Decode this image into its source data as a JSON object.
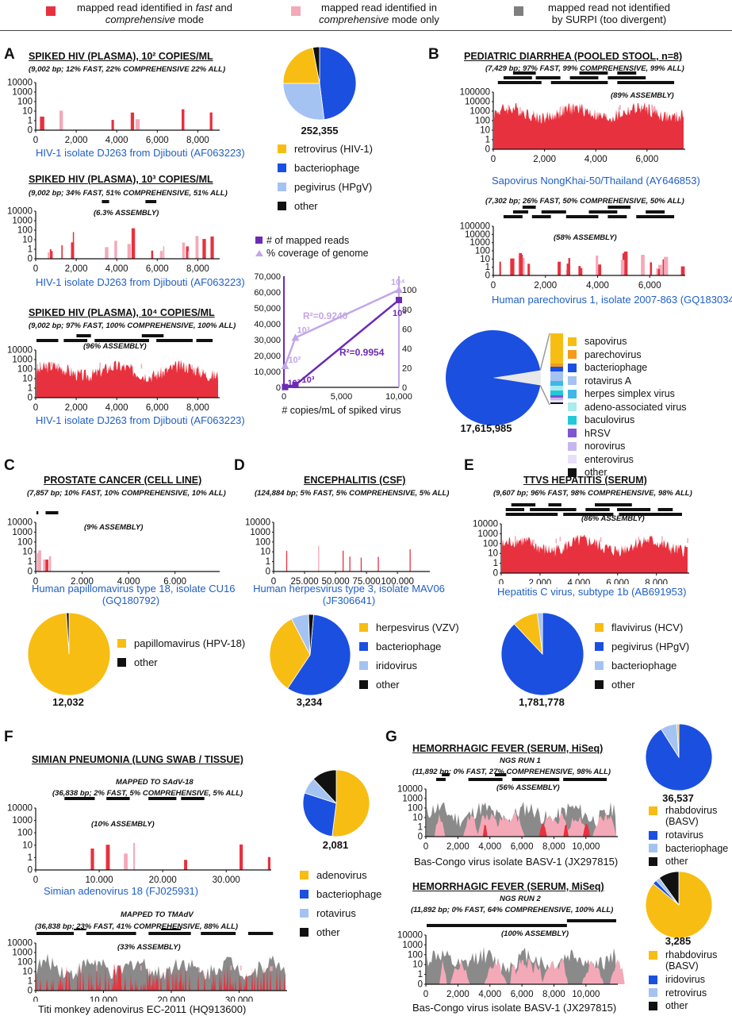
{
  "colors": {
    "fast": "#e8313e",
    "comp": "#f4a9b8",
    "divergent": "#7f7f7f",
    "yellow": "#f7bd13",
    "blue": "#1b4fe0",
    "lightblue": "#a4c3f2",
    "black": "#111111",
    "purple": "#6c2bb4",
    "lavender": "#c3a7e6"
  },
  "top_legend": [
    {
      "line1": "mapped read identified in",
      "em1": "fast",
      "mid": " and",
      "em2": "comprehensive",
      "line2": " mode"
    },
    {
      "line1": "mapped read identified in",
      "em2": "comprehensive",
      "line2": " mode only"
    },
    {
      "line1": "mapped read not identified",
      "line2": "by SURPI (too divergent)"
    }
  ],
  "panels": {
    "A": {
      "label": "A",
      "plots": [
        {
          "title": "SPIKED HIV (PLASMA), 10² COPIES/ML",
          "sub": "(9,002 bp; 12% FAST, 22% COMPREHENSIVE 22% ALL)",
          "caption": "HIV-1 isolate DJ263 from Djibouti (AF063223)",
          "assembly": ""
        },
        {
          "title": "SPIKED HIV (PLASMA), 10³ COPIES/ML",
          "sub": "(9,002 bp; 34% FAST, 51% COMPREHENSIVE, 51% ALL)",
          "caption": "HIV-1 isolate DJ263 from Djibouti (AF063223)",
          "assembly": "(6.3% ASSEMBLY)"
        },
        {
          "title": "SPIKED HIV (PLASMA), 10⁴ COPIES/ML",
          "sub": "(9,002 bp; 97% FAST, 100% COMPREHENSIVE, 100% ALL)",
          "caption": "HIV-1 isolate DJ263 from Djibouti (AF063223)",
          "assembly": "(96% ASSEMBLY)"
        }
      ],
      "yticks": [
        "10000",
        "1000",
        "100",
        "10",
        "1",
        "0"
      ],
      "xticks_short": [
        "0",
        "2,000",
        "4,000",
        "6,000",
        "8,000"
      ],
      "pie_count": "252,355",
      "legend": [
        {
          "label": "retrovirus (HIV-1)",
          "color": "yellow"
        },
        {
          "label": "bacteriophage",
          "color": "blue"
        },
        {
          "label": "pegivirus (HPgV)",
          "color": "lightblue"
        },
        {
          "label": "other",
          "color": "black"
        }
      ],
      "scatter": {
        "legend": [
          "# of mapped reads",
          "% coverage of genome"
        ],
        "xlabel": "# copies/mL of spiked virus",
        "xticks": [
          "0",
          "5,000",
          "10,000"
        ],
        "yleft": [
          "70,000",
          "60,000",
          "50,000",
          "40,000",
          "30,000",
          "20,000",
          "10,000",
          "0"
        ],
        "yright": [
          "100",
          "80",
          "60",
          "40",
          "20",
          "0"
        ],
        "r2_reads": "R²=0.9954",
        "r2_cov": "R²=0.9240",
        "pt_labels": [
          "10²",
          "10³",
          "10⁴"
        ],
        "reads": [
          [
            100,
            200
          ],
          [
            1000,
            1500
          ],
          [
            10000,
            55000
          ]
        ],
        "coverage": [
          [
            100,
            22
          ],
          [
            1000,
            51
          ],
          [
            10000,
            100
          ]
        ]
      }
    },
    "B": {
      "label": "B",
      "title": "PEDIATRIC DIARRHEA (POOLED STOOL, n=8)",
      "plots": [
        {
          "sub": "(7,429 bp; 97% FAST, 99% COMPREHENSIVE, 99% ALL)",
          "caption": "Sapovirus NongKhai-50/Thailand (AY646853)",
          "assembly": "(89% ASSEMBLY)"
        },
        {
          "sub": "(7,302 bp; 26% FAST, 50% COMPREHENSIVE, 50% ALL)",
          "caption": "Human parechovirus 1, isolate 2007-863 (GQ183034)",
          "assembly": "(58% ASSEMBLY)"
        }
      ],
      "yticks": [
        "100000",
        "10000",
        "1000",
        "100",
        "10",
        "1",
        "0"
      ],
      "xticks": [
        "0",
        "2,000",
        "4,000",
        "6,000"
      ],
      "pie_count": "17,615,985",
      "legend": [
        {
          "label": "sapovirus",
          "color": "#f7bd13"
        },
        {
          "label": "parechovirus",
          "color": "#f59a1a"
        },
        {
          "label": "bacteriophage",
          "color": "#1b4fe0"
        },
        {
          "label": "rotavirus A",
          "color": "#a4c3f2"
        },
        {
          "label": "herpes simplex virus",
          "color": "#3fb7e8"
        },
        {
          "label": "adeno-associated virus",
          "color": "#a8ecec"
        },
        {
          "label": "baculovirus",
          "color": "#22c9d8"
        },
        {
          "label": "hRSV",
          "color": "#7f55d4"
        },
        {
          "label": "norovirus",
          "color": "#c7b6ee"
        },
        {
          "label": "enterovirus",
          "color": "#e7e0f6"
        },
        {
          "label": "other",
          "color": "#111111"
        }
      ]
    },
    "C": {
      "label": "C",
      "title": "PROSTATE CANCER (CELL LINE)",
      "sub": "(7,857 bp; 10% FAST, 10% COMPREHENSIVE, 10% ALL)",
      "assembly": "(9% ASSEMBLY)",
      "caption1": "Human papillomavirus type 18, isolate CU16",
      "caption2": "(GQ180792)",
      "yticks": [
        "10000",
        "1000",
        "100",
        "10",
        "1",
        "0"
      ],
      "xticks": [
        "0",
        "2,000",
        "4,000",
        "6,000"
      ],
      "pie_count": "12,032",
      "legend": [
        {
          "label": "papillomavirus (HPV-18)",
          "color": "yellow"
        },
        {
          "label": "other",
          "color": "black"
        }
      ]
    },
    "D": {
      "label": "D",
      "title": "ENCEPHALITIS (CSF)",
      "sub": "(124,884 bp; 5% FAST, 5% COMPREHENSIVE, 5% ALL)",
      "caption1": "Human herpesvirus type 3, isolate MAV06",
      "caption2": "(JF306641)",
      "yticks": [
        "10000",
        "1000",
        "100",
        "10",
        "1",
        "0"
      ],
      "xticks": [
        "0",
        "25,000",
        "50,000",
        "75,000",
        "100,000"
      ],
      "pie_count": "3,234",
      "legend": [
        {
          "label": "herpesvirus (VZV)",
          "color": "yellow"
        },
        {
          "label": "bacteriophage",
          "color": "blue"
        },
        {
          "label": "iridovirus",
          "color": "lightblue"
        },
        {
          "label": "other",
          "color": "black"
        }
      ]
    },
    "E": {
      "label": "E",
      "title": "TTVS HEPATITIS (SERUM)",
      "sub": "(9,607 bp; 96% FAST, 98% COMPREHENSIVE, 98% ALL)",
      "assembly": "(86% ASSEMBLY)",
      "caption": "Hepatitis C virus, subtype 1b (AB691953)",
      "yticks": [
        "10000",
        "1000",
        "100",
        "10",
        "1",
        "0"
      ],
      "xticks": [
        "0",
        "2,000",
        "4,000",
        "6,000",
        "8,000"
      ],
      "pie_count": "1,781,778",
      "legend": [
        {
          "label": "flavivirus (HCV)",
          "color": "yellow"
        },
        {
          "label": "pegivirus (HPgV)",
          "color": "blue"
        },
        {
          "label": "bacteriophage",
          "color": "lightblue"
        },
        {
          "label": "other",
          "color": "black"
        }
      ]
    },
    "F": {
      "label": "F",
      "title": "SIMIAN PNEUMONIA (LUNG SWAB / TISSUE)",
      "plots": [
        {
          "mapped": "MAPPED TO SAdV-18",
          "sub": "(36,838 bp; 2% FAST, 5% COMPREHENSIVE, 5% ALL)",
          "assembly": "(10% ASSEMBLY)",
          "caption": "Simian adenovirus 18 (FJ025931)"
        },
        {
          "mapped": "MAPPED TO TMAdV",
          "sub": "(36,838 bp; 23% FAST, 41% COMPREHENSIVE, 88% ALL)",
          "assembly": "(33% ASSEMBLY)",
          "caption": "Titi monkey adenovirus EC-2011 (HQ913600)"
        }
      ],
      "yticks": [
        "10000",
        "1000",
        "100",
        "10",
        "1",
        "0"
      ],
      "xticks": [
        "0",
        "10,000",
        "20,000",
        "30,000"
      ],
      "pie_count": "2,081",
      "legend": [
        {
          "label": "adenovirus",
          "color": "yellow"
        },
        {
          "label": "bacteriophage",
          "color": "blue"
        },
        {
          "label": "rotavirus",
          "color": "lightblue"
        },
        {
          "label": "other",
          "color": "black"
        }
      ]
    },
    "G": {
      "label": "G",
      "plots": [
        {
          "title": "HEMORRHAGIC FEVER (SERUM, HiSeq)",
          "run": "NGS RUN 1",
          "sub": "(11,892 bp; 0% FAST, 27% COMPREHENSIVE, 98% ALL)",
          "assembly": "(56% ASSEMBLY)",
          "caption": "Bas-Congo virus isolate BASV-1 (JX297815)",
          "pie_count": "36,537",
          "legend": [
            {
              "label": "rhabdovirus",
              "label2": "(BASV)",
              "color": "yellow"
            },
            {
              "label": "rotavirus",
              "color": "blue"
            },
            {
              "label": "bacteriophage",
              "color": "lightblue"
            },
            {
              "label": "other",
              "color": "black"
            }
          ]
        },
        {
          "title": "HEMORRHAGIC FEVER (SERUM, MiSeq)",
          "run": "NGS RUN 2",
          "sub": "(11,892 bp; 0% FAST, 64% COMPREHENSIVE, 100% ALL)",
          "assembly": "(100% ASSEMBLY)",
          "caption": "Bas-Congo virus isolate BASV-1 (JX297815)",
          "pie_count": "3,285",
          "legend": [
            {
              "label": "rhabdovirus",
              "label2": "(BASV)",
              "color": "yellow"
            },
            {
              "label": "iridovirus",
              "color": "blue"
            },
            {
              "label": "retrovirus",
              "color": "lightblue"
            },
            {
              "label": "other",
              "color": "black"
            }
          ]
        }
      ],
      "yticks": [
        "10000",
        "1000",
        "100",
        "10",
        "1",
        "0"
      ],
      "xticks": [
        "0",
        "2,000",
        "4,000",
        "6,000",
        "8,000",
        "10,000"
      ]
    }
  },
  "chart_data": [
    {
      "type": "pie",
      "name": "A",
      "values": [
        {
          "label": "retrovirus (HIV-1)",
          "value": 22
        },
        {
          "label": "bacteriophage",
          "value": 48
        },
        {
          "label": "pegivirus (HPgV)",
          "value": 27
        },
        {
          "label": "other",
          "value": 3
        }
      ]
    },
    {
      "type": "scatter",
      "name": "A-scatter",
      "xlabel": "# copies/mL of spiked virus",
      "series": [
        {
          "name": "# of mapped reads",
          "x": [
            100,
            1000,
            10000
          ],
          "values": [
            200,
            1500,
            55000
          ]
        },
        {
          "name": "% coverage of genome",
          "x": [
            100,
            1000,
            10000
          ],
          "values": [
            22,
            51,
            100
          ]
        }
      ],
      "xlim": [
        0,
        10000
      ],
      "ylim": [
        0,
        70000
      ],
      "y2lim": [
        0,
        100
      ]
    },
    {
      "type": "pie",
      "name": "B",
      "values": [
        {
          "label": "bacteriophage",
          "value": 95
        },
        {
          "label": "other viruses",
          "value": 5
        }
      ]
    },
    {
      "type": "pie",
      "name": "C",
      "values": [
        {
          "label": "papillomavirus (HPV-18)",
          "value": 99
        },
        {
          "label": "other",
          "value": 1
        }
      ]
    },
    {
      "type": "pie",
      "name": "D",
      "values": [
        {
          "label": "bacteriophage",
          "value": 58
        },
        {
          "label": "herpesvirus (VZV)",
          "value": 33
        },
        {
          "label": "iridovirus",
          "value": 7
        },
        {
          "label": "other",
          "value": 2
        }
      ]
    },
    {
      "type": "pie",
      "name": "E",
      "values": [
        {
          "label": "pegivirus (HPgV)",
          "value": 88
        },
        {
          "label": "flavivirus (HCV)",
          "value": 10
        },
        {
          "label": "bacteriophage",
          "value": 2
        }
      ]
    },
    {
      "type": "pie",
      "name": "F",
      "values": [
        {
          "label": "adenovirus",
          "value": 52
        },
        {
          "label": "bacteriophage",
          "value": 28
        },
        {
          "label": "rotavirus",
          "value": 8
        },
        {
          "label": "other",
          "value": 12
        }
      ]
    },
    {
      "type": "pie",
      "name": "G1",
      "values": [
        {
          "label": "rotavirus",
          "value": 91
        },
        {
          "label": "bacteriophage",
          "value": 8
        },
        {
          "label": "rhabdovirus (BASV)",
          "value": 1
        }
      ]
    },
    {
      "type": "pie",
      "name": "G2",
      "values": [
        {
          "label": "rhabdovirus (BASV)",
          "value": 86
        },
        {
          "label": "iridovirus",
          "value": 2
        },
        {
          "label": "retrovirus",
          "value": 2
        },
        {
          "label": "other",
          "value": 10
        }
      ]
    }
  ]
}
